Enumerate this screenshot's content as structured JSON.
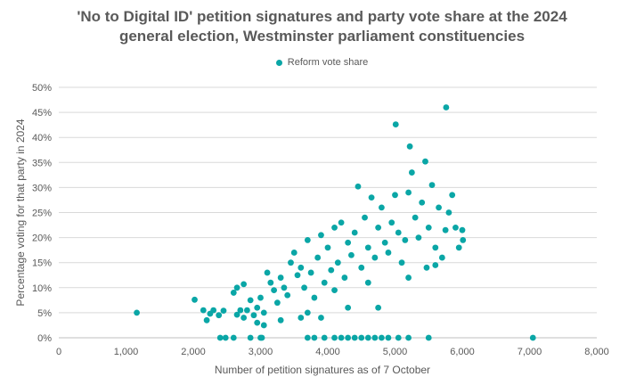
{
  "chart_data": {
    "type": "scatter",
    "title_line1": "'No to Digital ID' petition signatures and party vote share at the 2024",
    "title_line2": "general election, Westminster parliament constituencies",
    "xlabel": "Number of petition signatures as of 7 October",
    "ylabel": "Percentage voting for that party in 2024",
    "xlim": [
      0,
      8000
    ],
    "ylim": [
      0,
      50
    ],
    "x_ticks": [
      "0",
      "1,000",
      "2,000",
      "3,000",
      "4,000",
      "5,000",
      "6,000",
      "7,000",
      "8,000"
    ],
    "y_ticks": [
      "0%",
      "5%",
      "10%",
      "15%",
      "20%",
      "25%",
      "30%",
      "35%",
      "40%",
      "45%",
      "50%"
    ],
    "gridlines": "horizontal",
    "legend_position": "top-center",
    "series": [
      {
        "name": "Reform vote share",
        "color": "#0aa6a6",
        "points": [
          [
            1160,
            5.0
          ],
          [
            2020,
            7.6
          ],
          [
            2150,
            5.5
          ],
          [
            2200,
            3.5
          ],
          [
            2250,
            4.8
          ],
          [
            2300,
            5.5
          ],
          [
            2380,
            4.5
          ],
          [
            2450,
            5.4
          ],
          [
            2600,
            9.0
          ],
          [
            2650,
            10.0
          ],
          [
            2700,
            5.5
          ],
          [
            2750,
            10.7
          ],
          [
            2800,
            5.5
          ],
          [
            2650,
            4.6
          ],
          [
            2750,
            4.0
          ],
          [
            2850,
            7.5
          ],
          [
            2900,
            4.5
          ],
          [
            2950,
            6.0
          ],
          [
            3000,
            8.0
          ],
          [
            3050,
            5.0
          ],
          [
            3100,
            13.0
          ],
          [
            3150,
            11.0
          ],
          [
            3200,
            9.5
          ],
          [
            3250,
            7.0
          ],
          [
            3300,
            12.0
          ],
          [
            3350,
            10.0
          ],
          [
            3400,
            8.5
          ],
          [
            3450,
            15.0
          ],
          [
            3500,
            17.0
          ],
          [
            3550,
            12.5
          ],
          [
            3600,
            14.0
          ],
          [
            3650,
            10.0
          ],
          [
            3700,
            19.5
          ],
          [
            3750,
            13.0
          ],
          [
            3800,
            8.0
          ],
          [
            3850,
            16.0
          ],
          [
            3900,
            20.5
          ],
          [
            3950,
            11.0
          ],
          [
            4000,
            18.0
          ],
          [
            4050,
            13.5
          ],
          [
            4100,
            22.0
          ],
          [
            4150,
            15.0
          ],
          [
            4200,
            23.0
          ],
          [
            4250,
            12.0
          ],
          [
            4300,
            19.0
          ],
          [
            4350,
            16.5
          ],
          [
            4400,
            21.0
          ],
          [
            4450,
            30.2
          ],
          [
            4500,
            14.0
          ],
          [
            4550,
            24.0
          ],
          [
            4600,
            18.0
          ],
          [
            4650,
            28.0
          ],
          [
            4700,
            16.0
          ],
          [
            4750,
            22.0
          ],
          [
            4800,
            26.0
          ],
          [
            4850,
            19.0
          ],
          [
            4900,
            17.0
          ],
          [
            4950,
            23.0
          ],
          [
            5000,
            28.5
          ],
          [
            5050,
            21.0
          ],
          [
            5100,
            15.0
          ],
          [
            5150,
            19.5
          ],
          [
            5200,
            29.0
          ],
          [
            5220,
            38.2
          ],
          [
            5250,
            33.0
          ],
          [
            5300,
            24.0
          ],
          [
            5350,
            20.0
          ],
          [
            5400,
            27.0
          ],
          [
            5450,
            35.2
          ],
          [
            5500,
            22.0
          ],
          [
            5550,
            30.5
          ],
          [
            5600,
            18.0
          ],
          [
            5650,
            26.0
          ],
          [
            5700,
            16.0
          ],
          [
            5750,
            21.5
          ],
          [
            5760,
            46.0
          ],
          [
            5800,
            25.0
          ],
          [
            5850,
            28.5
          ],
          [
            5900,
            22.0
          ],
          [
            5950,
            18.0
          ],
          [
            6000,
            21.5
          ],
          [
            6010,
            19.5
          ],
          [
            5010,
            42.6
          ],
          [
            5470,
            14.0
          ],
          [
            5600,
            14.5
          ],
          [
            4100,
            9.5
          ],
          [
            3600,
            4.0
          ],
          [
            3700,
            5.0
          ],
          [
            4300,
            6.0
          ],
          [
            4600,
            11.0
          ],
          [
            4750,
            6.0
          ],
          [
            5200,
            12.0
          ],
          [
            3050,
            2.5
          ],
          [
            2950,
            3.0
          ],
          [
            3300,
            3.5
          ],
          [
            3900,
            4.0
          ],
          [
            2400,
            0
          ],
          [
            2480,
            0
          ],
          [
            2600,
            0
          ],
          [
            2850,
            0
          ],
          [
            3000,
            0
          ],
          [
            3020,
            0
          ],
          [
            3700,
            0
          ],
          [
            3800,
            0
          ],
          [
            3950,
            0
          ],
          [
            4100,
            0
          ],
          [
            4200,
            0
          ],
          [
            4300,
            0
          ],
          [
            4400,
            0
          ],
          [
            4500,
            0
          ],
          [
            4600,
            0
          ],
          [
            4700,
            0
          ],
          [
            4800,
            0
          ],
          [
            4900,
            0
          ],
          [
            5050,
            0
          ],
          [
            5200,
            0
          ],
          [
            5500,
            0
          ],
          [
            7050,
            0
          ]
        ]
      }
    ]
  }
}
